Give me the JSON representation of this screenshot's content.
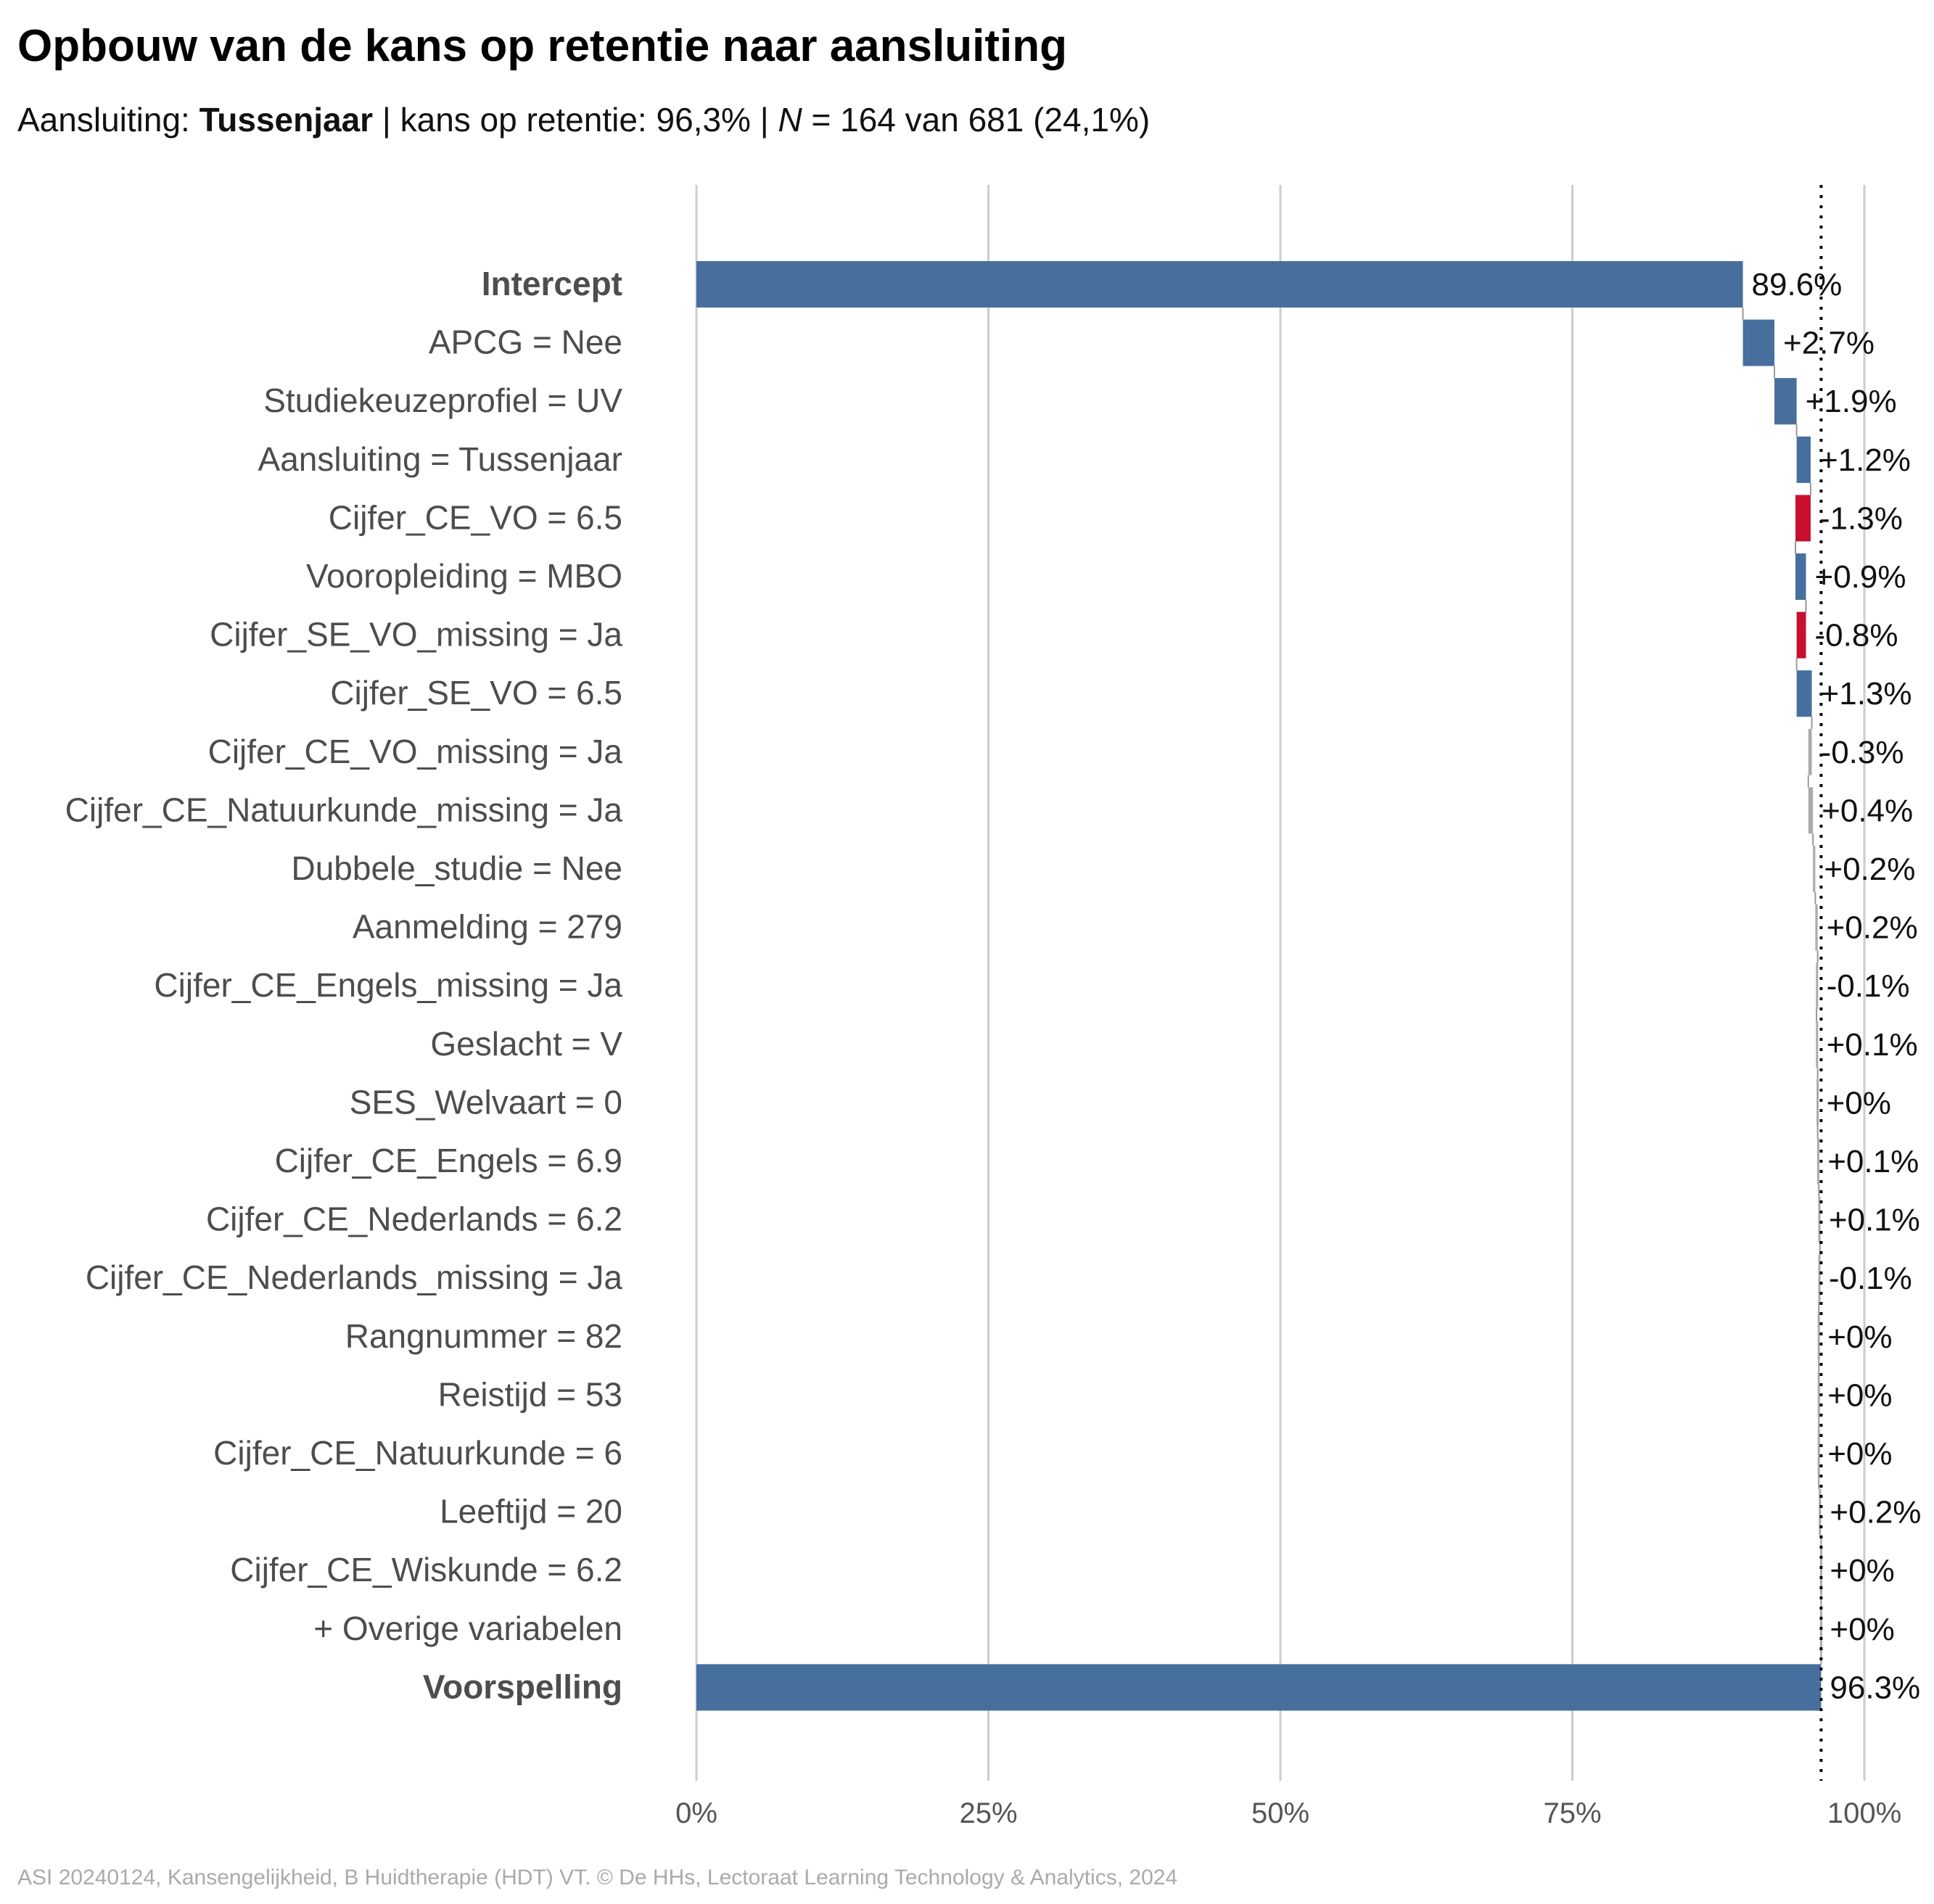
{
  "title": "Opbouw van de kans op retentie naar aansluiting",
  "subtitle": {
    "label": "Aansluiting:",
    "group": "Tussenjaar",
    "sep1": "|",
    "kans_text": "kans op retentie: 96,3%",
    "sep2": "|",
    "n_symbol": "N",
    "n_text": "= 164 van 681 (24,1%)"
  },
  "caption": "ASI 20240124, Kansengelijkheid, B Huidtherapie (HDT) VT. © De HHs, Lectoraat Learning Technology & Analytics, 2024",
  "colors": {
    "positive": "#466f9d",
    "negative": "#c8102e",
    "small": "#aaaaaa",
    "grid": "#cccccc",
    "axis_text": "#555555",
    "category_text": "#4d4d4d"
  },
  "chart_data": {
    "type": "bar",
    "subtype": "waterfall",
    "xlim": [
      0,
      100
    ],
    "x_ticks": [
      0,
      25,
      50,
      75,
      100
    ],
    "x_tick_labels": [
      "0%",
      "25%",
      "50%",
      "75%",
      "100%"
    ],
    "reference_line": 96.3,
    "grid": true,
    "categories": [
      "Intercept",
      "APCG = Nee",
      "Studiekeuzeprofiel = UV",
      "Aansluiting = Tussenjaar",
      "Cijfer_CE_VO = 6.5",
      "Vooropleiding = MBO",
      "Cijfer_SE_VO_missing = Ja",
      "Cijfer_SE_VO = 6.5",
      "Cijfer_CE_VO_missing = Ja",
      "Cijfer_CE_Natuurkunde_missing = Ja",
      "Dubbele_studie = Nee",
      "Aanmelding = 279",
      "Cijfer_CE_Engels_missing = Ja",
      "Geslacht = V",
      "SES_Welvaart = 0",
      "Cijfer_CE_Engels = 6.9",
      "Cijfer_CE_Nederlands = 6.2",
      "Cijfer_CE_Nederlands_missing = Ja",
      "Rangnummer = 82",
      "Reistijd = 53",
      "Cijfer_CE_Natuurkunde = 6",
      "Leeftijd = 20",
      "Cijfer_CE_Wiskunde = 6.2",
      "+ Overige variabelen",
      "Voorspelling"
    ],
    "values": [
      89.6,
      2.7,
      1.9,
      1.2,
      -1.3,
      0.9,
      -0.8,
      1.3,
      -0.3,
      0.4,
      0.2,
      0.2,
      -0.1,
      0.1,
      0,
      0.1,
      0.1,
      -0.1,
      0,
      0,
      0,
      0.2,
      0,
      0,
      96.3
    ],
    "value_labels": [
      "89.6%",
      "+2.7%",
      "+1.9%",
      "+1.2%",
      "-1.3%",
      "+0.9%",
      "-0.8%",
      "+1.3%",
      "-0.3%",
      "+0.4%",
      "+0.2%",
      "+0.2%",
      "-0.1%",
      "+0.1%",
      "+0%",
      "+0.1%",
      "+0.1%",
      "-0.1%",
      "+0%",
      "+0%",
      "+0%",
      "+0.2%",
      "+0%",
      "+0%",
      "96.3%"
    ],
    "bold_categories": [
      "Intercept",
      "Voorspelling"
    ],
    "total_categories": [
      "Intercept",
      "Voorspelling"
    ]
  }
}
